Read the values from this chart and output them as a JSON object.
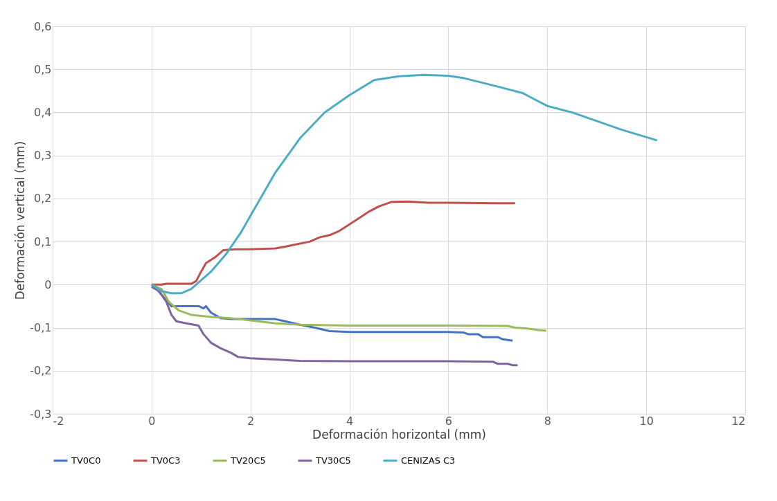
{
  "chart_data": {
    "type": "line",
    "xlabel": "Deformación horizontal (mm)",
    "ylabel": "Deformación vertical (mm)",
    "xlim": [
      -2,
      12
    ],
    "xticks": [
      -2,
      0,
      2,
      4,
      6,
      8,
      10,
      12
    ],
    "ylim": [
      -0.3,
      0.6
    ],
    "yticks": [
      {
        "value": -0.3,
        "label": "-0,3"
      },
      {
        "value": -0.2,
        "label": "-0,2"
      },
      {
        "value": -0.1,
        "label": "-0,1"
      },
      {
        "value": 0,
        "label": "0"
      },
      {
        "value": 0.1,
        "label": "0,1"
      },
      {
        "value": 0.2,
        "label": "0,2"
      },
      {
        "value": 0.3,
        "label": "0,3"
      },
      {
        "value": 0.4,
        "label": "0,4"
      },
      {
        "value": 0.5,
        "label": "0,5"
      },
      {
        "value": 0.6,
        "label": "0,6"
      }
    ],
    "grid": true,
    "legend": "bottom",
    "marker": "none",
    "line_style": "solid",
    "series": [
      {
        "name": "TV0C0",
        "color": "#4472c4",
        "x": [
          0,
          0.1,
          0.25,
          0.4,
          0.6,
          0.8,
          0.95,
          1.05,
          1.1,
          1.2,
          1.4,
          1.6,
          2,
          2.5,
          2.7,
          3,
          3.3,
          3.6,
          4,
          5,
          6,
          6.3,
          6.4,
          6.6,
          6.7,
          7,
          7.1,
          7.3
        ],
        "values": [
          0,
          -0.01,
          -0.03,
          -0.05,
          -0.05,
          -0.05,
          -0.05,
          -0.055,
          -0.05,
          -0.065,
          -0.078,
          -0.08,
          -0.08,
          -0.08,
          -0.085,
          -0.093,
          -0.1,
          -0.108,
          -0.11,
          -0.11,
          -0.11,
          -0.111,
          -0.115,
          -0.115,
          -0.122,
          -0.122,
          -0.127,
          -0.13
        ]
      },
      {
        "name": "TV0C3",
        "color": "#c0504d",
        "x": [
          0,
          0.2,
          0.3,
          0.5,
          0.8,
          0.9,
          1,
          1.1,
          1.3,
          1.45,
          1.7,
          2,
          2.5,
          2.7,
          2.9,
          3.2,
          3.4,
          3.6,
          3.8,
          4,
          4.2,
          4.4,
          4.6,
          4.85,
          5.2,
          5.6,
          6,
          7,
          7.35
        ],
        "values": [
          0,
          0,
          0.002,
          0.002,
          0.002,
          0.008,
          0.03,
          0.05,
          0.065,
          0.08,
          0.082,
          0.082,
          0.084,
          0.088,
          0.093,
          0.1,
          0.11,
          0.115,
          0.125,
          0.14,
          0.155,
          0.17,
          0.182,
          0.192,
          0.193,
          0.19,
          0.19,
          0.189,
          0.189
        ]
      },
      {
        "name": "TV20C5",
        "color": "#9bbb59",
        "x": [
          0,
          0.2,
          0.35,
          0.55,
          0.8,
          1.2,
          1.6,
          2,
          2.5,
          3,
          4,
          6,
          7.2,
          7.35,
          7.6,
          7.8,
          7.98
        ],
        "values": [
          0,
          -0.01,
          -0.04,
          -0.06,
          -0.07,
          -0.075,
          -0.078,
          -0.083,
          -0.09,
          -0.093,
          -0.095,
          -0.095,
          -0.096,
          -0.1,
          -0.102,
          -0.105,
          -0.107
        ]
      },
      {
        "name": "TV30C5",
        "color": "#8064a2",
        "x": [
          0,
          0.15,
          0.3,
          0.4,
          0.5,
          0.7,
          0.95,
          1.05,
          1.2,
          1.4,
          1.6,
          1.75,
          2,
          2.5,
          3,
          4,
          6,
          6.9,
          7,
          7.2,
          7.3,
          7.4
        ],
        "values": [
          -0.005,
          -0.015,
          -0.04,
          -0.07,
          -0.085,
          -0.09,
          -0.095,
          -0.115,
          -0.135,
          -0.148,
          -0.158,
          -0.168,
          -0.171,
          -0.174,
          -0.177,
          -0.178,
          -0.178,
          -0.179,
          -0.184,
          -0.184,
          -0.187,
          -0.187
        ]
      },
      {
        "name": "CENIZAS C3",
        "color": "#4bacc6",
        "x": [
          0,
          0.2,
          0.4,
          0.6,
          0.8,
          1,
          1.2,
          1.5,
          1.8,
          2,
          2.5,
          3,
          3.5,
          4,
          4.5,
          5,
          5.5,
          6,
          6.3,
          7,
          7.5,
          8,
          8.5,
          9,
          9.5,
          10.22
        ],
        "values": [
          0,
          -0.015,
          -0.02,
          -0.02,
          -0.01,
          0.01,
          0.03,
          0.07,
          0.12,
          0.16,
          0.26,
          0.34,
          0.4,
          0.44,
          0.475,
          0.484,
          0.487,
          0.485,
          0.48,
          0.46,
          0.445,
          0.415,
          0.4,
          0.38,
          0.36,
          0.335
        ]
      }
    ]
  }
}
